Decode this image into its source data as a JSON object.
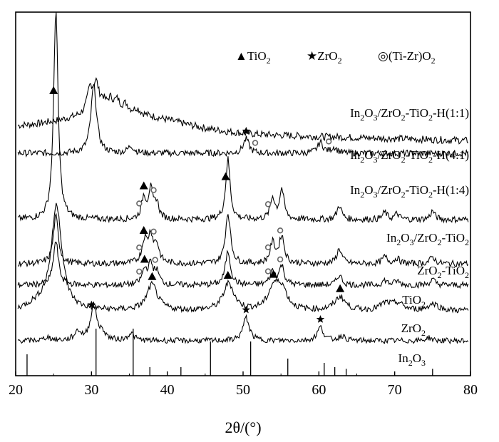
{
  "chart_data": {
    "type": "line",
    "title": "",
    "xlabel": "2θ/(°)",
    "ylabel": "",
    "xlim": [
      20,
      80
    ],
    "x_ticks": [
      "20",
      "30",
      "40",
      "50",
      "60",
      "70",
      "80"
    ],
    "grid": false,
    "legend": {
      "placement": "top-right",
      "items": [
        {
          "marker": "triangle",
          "label": "▲TiO₂",
          "parts": [
            "▲TiO",
            "2"
          ]
        },
        {
          "marker": "star",
          "label": "★ZrO₂",
          "parts": [
            "★ZrO",
            "2"
          ]
        },
        {
          "marker": "circle",
          "label": "◎(Ti-Zr)O₂",
          "parts": [
            "◎(Ti-Zr)O",
            "2"
          ]
        }
      ]
    },
    "series": [
      {
        "name": "In2O3/ZrO2-TiO2-H(1:1)",
        "label_parts": [
          "In",
          "2",
          "O",
          "3",
          "/ZrO",
          "2",
          "-TiO",
          "2",
          "-H(1:1)"
        ],
        "peaks": [
          [
            29.8,
            0.45
          ],
          [
            30.6,
            0.52
          ],
          [
            31.5,
            0.18
          ],
          [
            32.5,
            0.22
          ],
          [
            33.4,
            0.2
          ],
          [
            34.5,
            0.15
          ],
          [
            36.0,
            0.1
          ]
        ]
      },
      {
        "name": "In2O3/ZrO2-TiO2-H(4:1)",
        "label_parts": [
          "In",
          "2",
          "O",
          "3",
          "/ZrO",
          "2",
          "-TiO",
          "2",
          "-H(4:1)"
        ],
        "peaks": [
          [
            30.3,
            0.95
          ],
          [
            35.2,
            0.1
          ],
          [
            50.4,
            0.2
          ],
          [
            60.2,
            0.15
          ],
          [
            62.0,
            0.08
          ]
        ]
      },
      {
        "name": "In2O3/ZrO2-TiO2-H(1:4)",
        "label_parts": [
          "In",
          "2",
          "O",
          "3",
          "/ZrO",
          "2",
          "-TiO",
          "2",
          "-H(1:4)"
        ],
        "peaks": [
          [
            25.3,
            2.95
          ],
          [
            36.9,
            0.3
          ],
          [
            37.8,
            0.4
          ],
          [
            38.6,
            0.22
          ],
          [
            48.0,
            0.85
          ],
          [
            53.9,
            0.3
          ],
          [
            55.1,
            0.42
          ],
          [
            62.7,
            0.2
          ],
          [
            68.7,
            0.1
          ],
          [
            70.3,
            0.08
          ],
          [
            75.0,
            0.12
          ]
        ]
      },
      {
        "name": "In2O3/ZrO2-TiO2",
        "label_parts": [
          "In",
          "2",
          "O",
          "3",
          "/ZrO",
          "2",
          "-TiO",
          "2"
        ],
        "peaks": [
          [
            25.3,
            0.7
          ],
          [
            37.0,
            0.32
          ],
          [
            37.8,
            0.38
          ],
          [
            38.6,
            0.25
          ],
          [
            48.0,
            0.75
          ],
          [
            53.9,
            0.3
          ],
          [
            55.1,
            0.4
          ],
          [
            62.7,
            0.22
          ],
          [
            68.7,
            0.1
          ],
          [
            70.3,
            0.08
          ],
          [
            75.0,
            0.1
          ]
        ]
      },
      {
        "name": "ZrO2-TiO2",
        "label_parts": [
          "ZrO",
          "2",
          "-TiO",
          "2"
        ],
        "peaks": [
          [
            25.3,
            0.65
          ],
          [
            37.0,
            0.2
          ],
          [
            37.8,
            0.28
          ],
          [
            38.6,
            0.18
          ],
          [
            48.0,
            0.5
          ],
          [
            53.9,
            0.2
          ],
          [
            55.1,
            0.28
          ],
          [
            62.7,
            0.15
          ],
          [
            68.7,
            0.07
          ],
          [
            70.3,
            0.06
          ],
          [
            75.0,
            0.08
          ]
        ]
      },
      {
        "name": "TiO2",
        "label_parts": [
          "TiO",
          "2"
        ],
        "peaks": [
          [
            25.4,
            1.55
          ],
          [
            38.0,
            0.38
          ],
          [
            48.1,
            0.4
          ],
          [
            54.0,
            0.3
          ],
          [
            55.1,
            0.3
          ],
          [
            62.8,
            0.2
          ],
          [
            68.8,
            0.1
          ],
          [
            70.4,
            0.1
          ],
          [
            75.1,
            0.1
          ]
        ]
      },
      {
        "name": "ZrO2",
        "label_parts": [
          "ZrO",
          "2"
        ],
        "peaks": [
          [
            24.2,
            0.06
          ],
          [
            28.2,
            0.15
          ],
          [
            30.3,
            0.6
          ],
          [
            31.5,
            0.1
          ],
          [
            35.2,
            0.12
          ],
          [
            50.4,
            0.38
          ],
          [
            60.2,
            0.22
          ],
          [
            63.0,
            0.08
          ],
          [
            74.5,
            0.05
          ]
        ]
      },
      {
        "name": "In2O3",
        "label_parts": [
          "In",
          "2",
          "O",
          "3"
        ],
        "reference_lines": [
          [
            21.5,
            0.25
          ],
          [
            30.6,
            0.55
          ],
          [
            35.5,
            0.55
          ],
          [
            37.7,
            0.1
          ],
          [
            41.8,
            0.1
          ],
          [
            45.7,
            0.4
          ],
          [
            51.0,
            0.4
          ],
          [
            55.9,
            0.2
          ],
          [
            60.7,
            0.15
          ],
          [
            62.1,
            0.1
          ],
          [
            63.6,
            0.08
          ],
          [
            75.0,
            0.08
          ]
        ]
      }
    ],
    "markers": [
      {
        "type": "triangle",
        "x": 25.0,
        "series": 2
      },
      {
        "type": "triangle",
        "x": 36.9,
        "series": 2
      },
      {
        "type": "triangle",
        "x": 47.7,
        "series": 2
      },
      {
        "type": "triangle",
        "x": 36.9,
        "series": 3
      },
      {
        "type": "triangle",
        "x": 37.0,
        "series": 4
      },
      {
        "type": "triangle",
        "x": 38.0,
        "series": 5
      },
      {
        "type": "triangle",
        "x": 48.0,
        "series": 5
      },
      {
        "type": "triangle",
        "x": 54.0,
        "series": 5
      },
      {
        "type": "triangle",
        "x": 62.8,
        "series": 5
      },
      {
        "type": "star",
        "x": 50.4,
        "series": 1
      },
      {
        "type": "star",
        "x": 30.0,
        "series": 6
      },
      {
        "type": "star",
        "x": 50.4,
        "series": 6
      },
      {
        "type": "star",
        "x": 60.2,
        "series": 6
      },
      {
        "type": "circle",
        "x": 51.6,
        "series": 1
      },
      {
        "type": "circle",
        "x": 61.3,
        "series": 1
      },
      {
        "type": "circle",
        "x": 36.3,
        "series": 2
      },
      {
        "type": "circle",
        "x": 38.2,
        "series": 2
      },
      {
        "type": "circle",
        "x": 53.3,
        "series": 2
      },
      {
        "type": "circle",
        "x": 36.3,
        "series": 3
      },
      {
        "type": "circle",
        "x": 38.2,
        "series": 3
      },
      {
        "type": "circle",
        "x": 53.3,
        "series": 3
      },
      {
        "type": "circle",
        "x": 54.9,
        "series": 3
      },
      {
        "type": "circle",
        "x": 36.3,
        "series": 4
      },
      {
        "type": "circle",
        "x": 38.4,
        "series": 4
      },
      {
        "type": "circle",
        "x": 53.3,
        "series": 4
      },
      {
        "type": "circle",
        "x": 54.9,
        "series": 4
      }
    ]
  }
}
